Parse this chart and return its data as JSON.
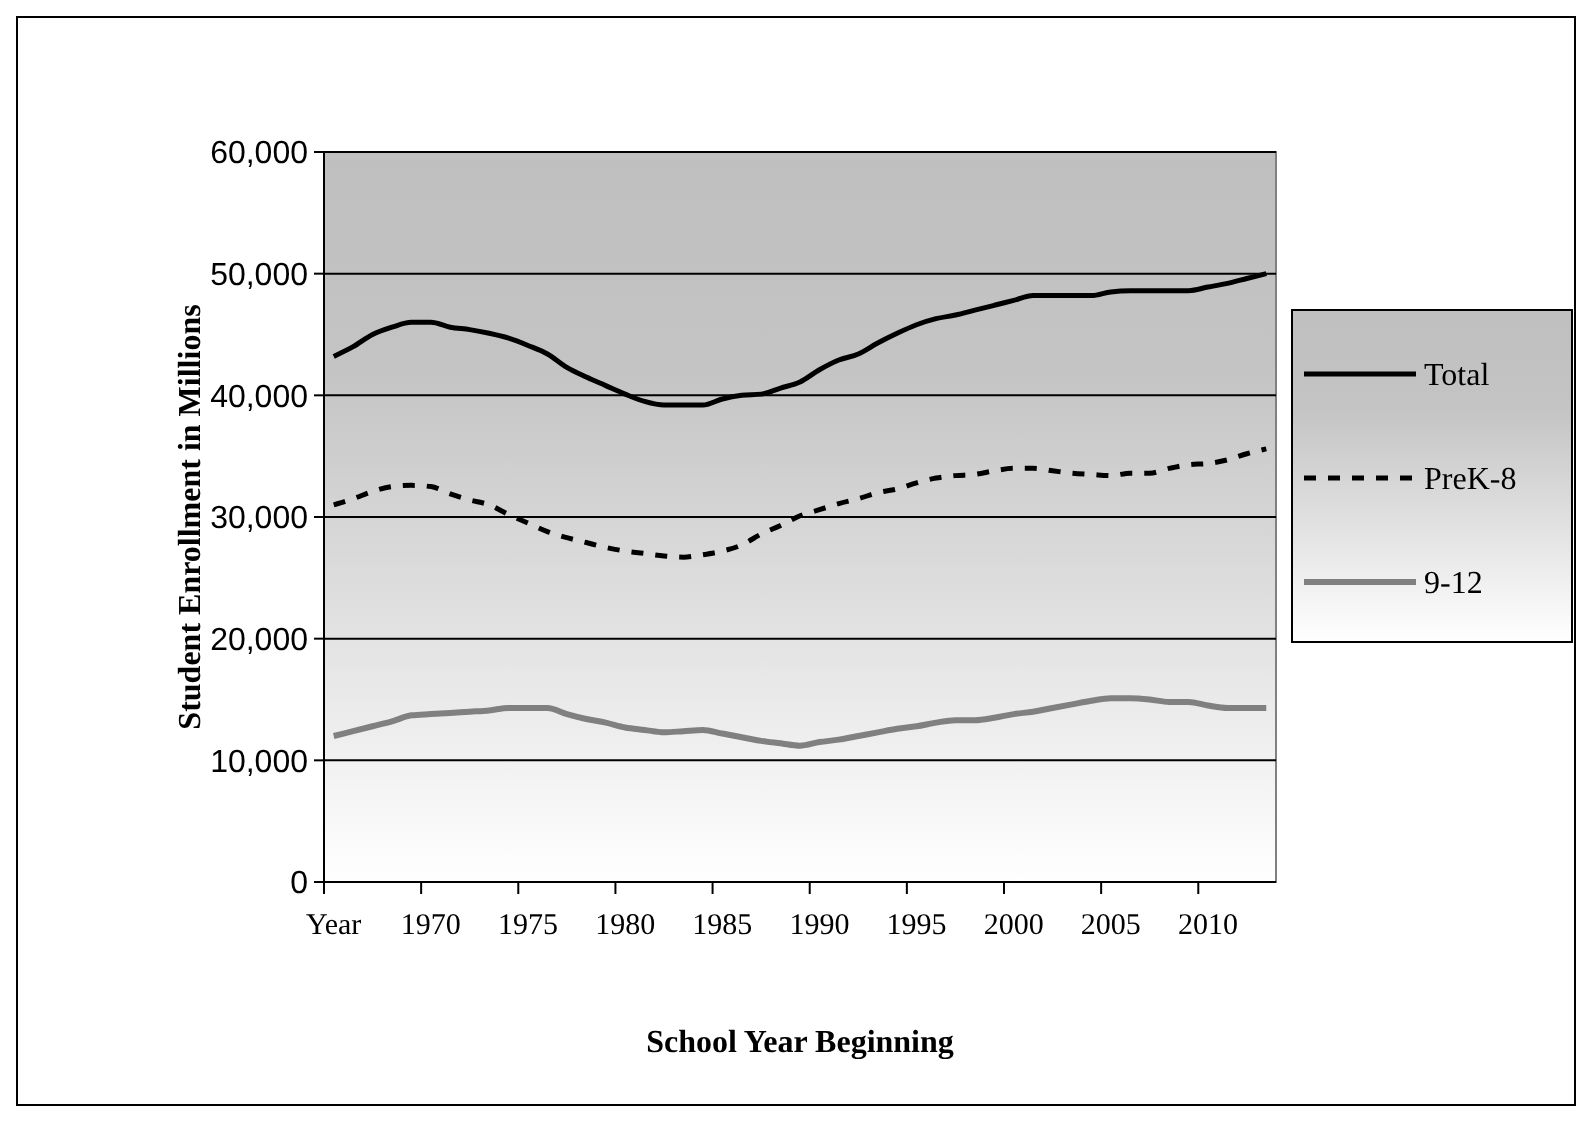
{
  "chart_data": {
    "type": "line",
    "xlabel": "School Year Beginning",
    "ylabel": "Student Enrollment in Millions",
    "categories": [
      "Year",
      null,
      null,
      null,
      null,
      "1970",
      null,
      null,
      null,
      null,
      "1975",
      null,
      null,
      null,
      null,
      "1980",
      null,
      null,
      null,
      null,
      "1985",
      null,
      null,
      null,
      null,
      "1990",
      null,
      null,
      null,
      null,
      "1995",
      null,
      null,
      null,
      null,
      "2000",
      null,
      null,
      null,
      null,
      "2005",
      null,
      null,
      null,
      null,
      "2010",
      null,
      null,
      null
    ],
    "series": [
      {
        "name": "Total",
        "color": "#000000",
        "line_style": "solid",
        "values": [
          43200,
          44000,
          45000,
          45600,
          46000,
          46000,
          45600,
          45400,
          45100,
          44700,
          44100,
          43400,
          42300,
          41500,
          40800,
          40100,
          39500,
          39200,
          39200,
          39200,
          39700,
          40000,
          40100,
          40600,
          41100,
          42100,
          42900,
          43400,
          44300,
          45100,
          45800,
          46300,
          46600,
          47000,
          47400,
          47800,
          48200,
          48200,
          48200,
          48200,
          48500,
          48600,
          48600,
          48600,
          48600,
          48900,
          49200,
          49600,
          50000
        ]
      },
      {
        "name": "PreK-8",
        "color": "#000000",
        "line_style": "dashed",
        "values": [
          31000,
          31500,
          32100,
          32500,
          32600,
          32500,
          31900,
          31400,
          31000,
          30200,
          29500,
          28800,
          28300,
          27900,
          27500,
          27200,
          27000,
          26800,
          26700,
          26900,
          27200,
          27700,
          28600,
          29300,
          30100,
          30600,
          31100,
          31500,
          32000,
          32300,
          32800,
          33200,
          33400,
          33500,
          33800,
          34000,
          34000,
          33800,
          33600,
          33500,
          33400,
          33600,
          33600,
          34000,
          34300,
          34400,
          34700,
          35200,
          35600
        ]
      },
      {
        "name": "9-12",
        "color": "#808080",
        "line_style": "solid",
        "values": [
          12000,
          12400,
          12800,
          13200,
          13700,
          13800,
          13900,
          14000,
          14100,
          14300,
          14300,
          14300,
          13800,
          13400,
          13100,
          12700,
          12500,
          12300,
          12400,
          12500,
          12200,
          11900,
          11600,
          11400,
          11200,
          11500,
          11700,
          12000,
          12300,
          12600,
          12800,
          13100,
          13300,
          13300,
          13500,
          13800,
          14000,
          14300,
          14600,
          14900,
          15100,
          15100,
          15000,
          14800,
          14800,
          14500,
          14300,
          14300,
          14300
        ]
      }
    ],
    "ylim": [
      0,
      60000
    ],
    "yticks": [
      {
        "value": 0,
        "label": "0"
      },
      {
        "value": 10000,
        "label": "10,000"
      },
      {
        "value": 20000,
        "label": "20,000"
      },
      {
        "value": 30000,
        "label": "30,000"
      },
      {
        "value": 40000,
        "label": "40,000"
      },
      {
        "value": 50000,
        "label": "50,000"
      },
      {
        "value": 60000,
        "label": "60,000"
      }
    ],
    "grid": "y",
    "legend": "right",
    "marker": "none"
  }
}
